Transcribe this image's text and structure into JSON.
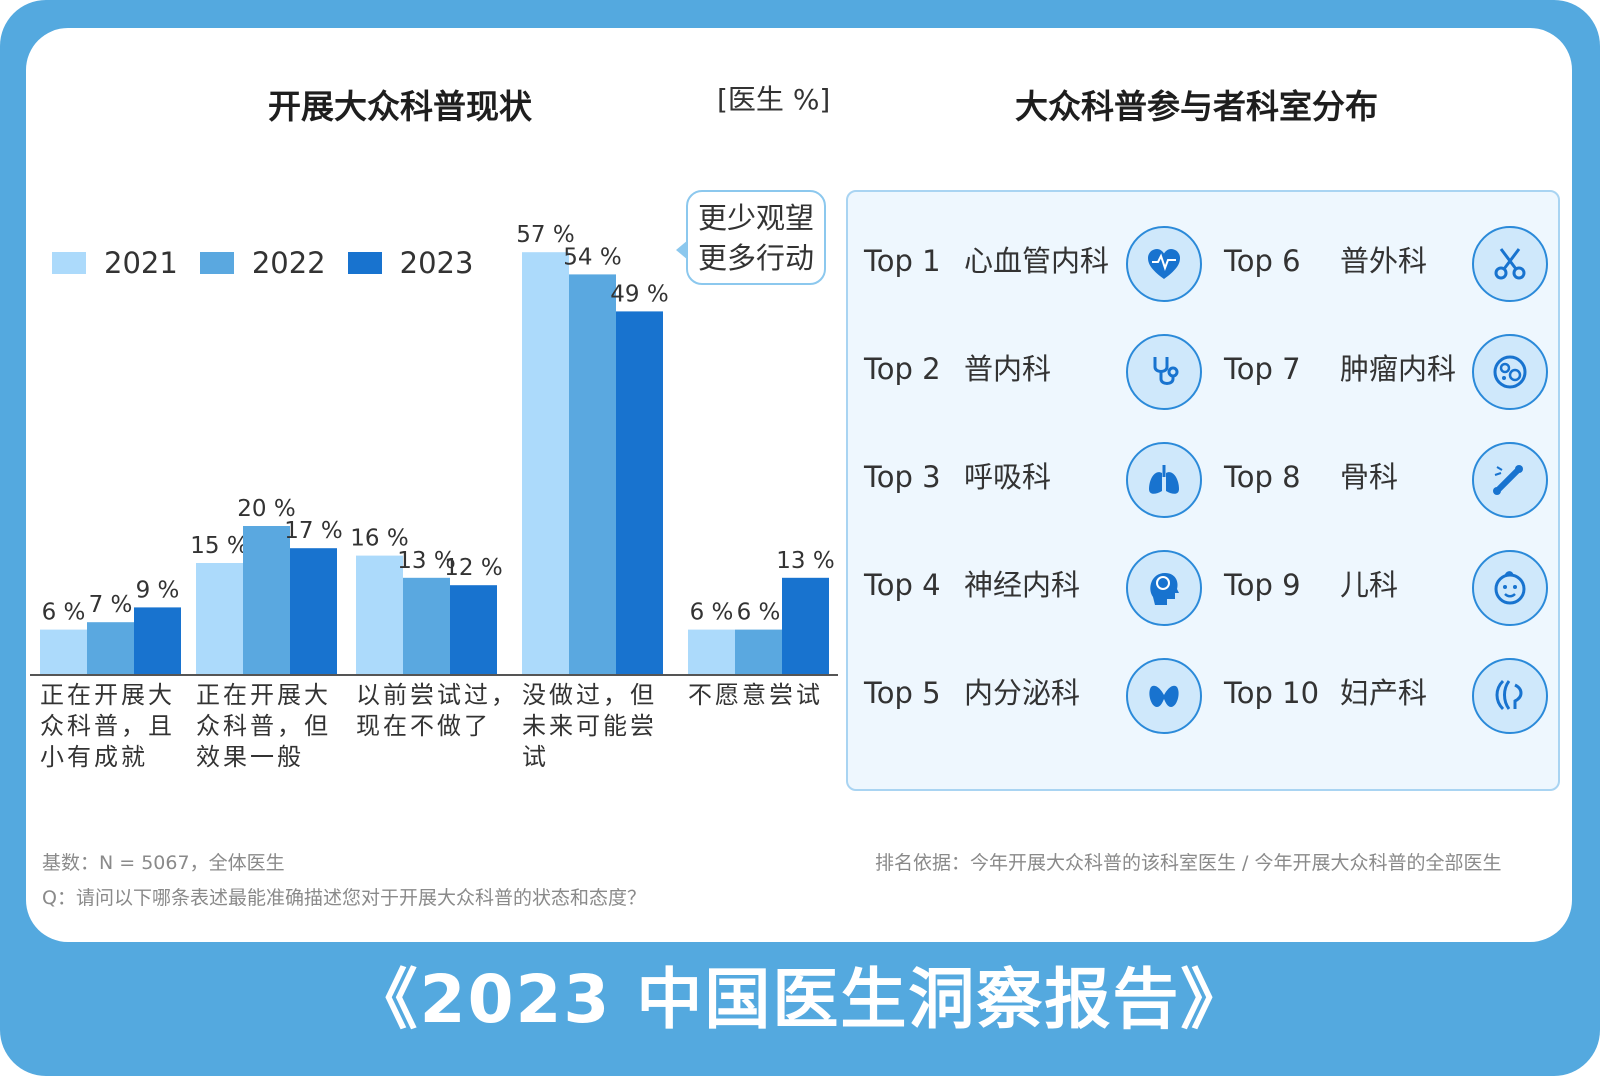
{
  "left_title": "开展大众科普现状",
  "unit_label": "[医生 %]",
  "right_title": "大众科普参与者科室分布",
  "legend": [
    "2021",
    "2022",
    "2023"
  ],
  "colors": {
    "y2021": "#acdafb",
    "y2022": "#5aa8e0",
    "y2023": "#1873cf"
  },
  "callout": {
    "line1": "更少观望",
    "line2": "更多行动"
  },
  "chart_data": {
    "type": "bar",
    "categories": [
      "正在开展大众科普，且小有成就",
      "正在开展大众科普，但效果一般",
      "以前尝试过，现在不做了",
      "没做过，但未来可能尝试",
      "不愿意尝试"
    ],
    "category_lines": [
      [
        "正在开展大",
        "众科普，且",
        "小有成就"
      ],
      [
        "正在开展大",
        "众科普，但",
        "效果一般"
      ],
      [
        "以前尝试过，",
        "现在不做了"
      ],
      [
        "没做过，但",
        "未来可能尝",
        "试"
      ],
      [
        "不愿意尝试"
      ]
    ],
    "series": [
      {
        "name": "2021",
        "values": [
          6,
          15,
          16,
          57,
          6
        ]
      },
      {
        "name": "2022",
        "values": [
          7,
          20,
          13,
          54,
          6
        ]
      },
      {
        "name": "2023",
        "values": [
          9,
          17,
          12,
          49,
          13
        ]
      }
    ],
    "value_labels": [
      [
        "6 %",
        "7 %",
        "9 %"
      ],
      [
        "15 %",
        "20 %",
        "17 %"
      ],
      [
        "16 %",
        "13 %",
        "12 %"
      ],
      [
        "57 %",
        "54 %",
        "49 %"
      ],
      [
        "6 %",
        "6 %",
        "13 %"
      ]
    ],
    "ylim": [
      0,
      57
    ]
  },
  "ranking": [
    {
      "rank": "Top 1",
      "dept": "心血管内科",
      "icon": "heart-icon"
    },
    {
      "rank": "Top 2",
      "dept": "普内科",
      "icon": "stethoscope-icon"
    },
    {
      "rank": "Top 3",
      "dept": "呼吸科",
      "icon": "lungs-icon"
    },
    {
      "rank": "Top 4",
      "dept": "神经内科",
      "icon": "brain-head-icon"
    },
    {
      "rank": "Top 5",
      "dept": "内分泌科",
      "icon": "thyroid-icon"
    },
    {
      "rank": "Top 6",
      "dept": "普外科",
      "icon": "scissors-icon"
    },
    {
      "rank": "Top 7",
      "dept": "肿瘤内科",
      "icon": "tumor-cell-icon"
    },
    {
      "rank": "Top 8",
      "dept": "骨科",
      "icon": "bone-icon"
    },
    {
      "rank": "Top 9",
      "dept": "儿科",
      "icon": "baby-face-icon"
    },
    {
      "rank": "Top 10",
      "dept": "妇产科",
      "icon": "uterus-icon"
    }
  ],
  "notes": {
    "base": "基数：N = 5067，全体医生",
    "question": "Q：请问以下哪条表述最能准确描述您对于开展大众科普的状态和态度？",
    "ranking_basis": "排名依据：今年开展大众科普的该科室医生 / 今年开展大众科普的全部医生"
  },
  "banner": "《2023 中国医生洞察报告》"
}
